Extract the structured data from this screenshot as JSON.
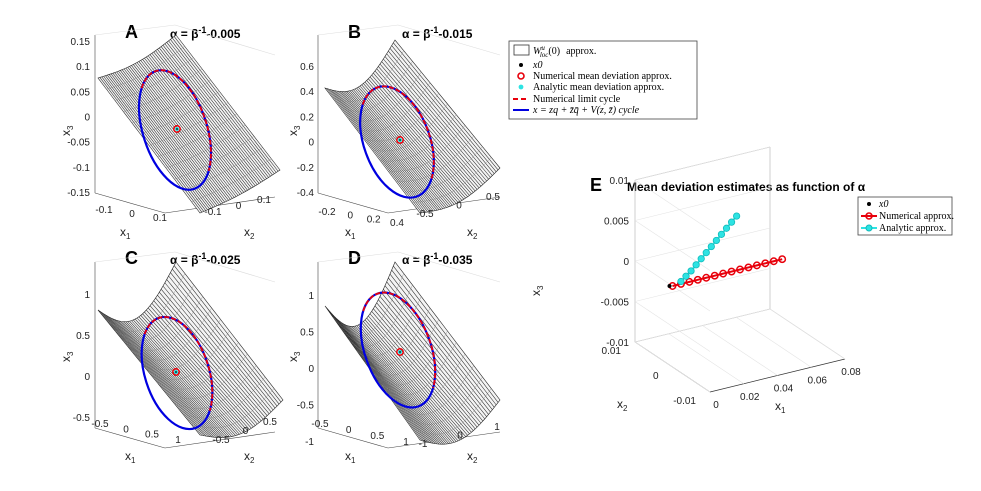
{
  "chart_data": [
    {
      "type": "scatter",
      "panel": "A",
      "title": "α = β-1-0.005",
      "title_parts": {
        "sym": "α",
        "eq": " = ",
        "beta": "β",
        "sup": "-1",
        "tail": "-0.005"
      },
      "xlabel": "x1",
      "ylabel": "x2",
      "zlabel": "x3",
      "x_ticks": [
        "-0.1",
        "0",
        "0.1"
      ],
      "y_ticks": [
        "-0.1",
        "0",
        "0.1"
      ],
      "z_ticks": [
        "0.15",
        "0.1",
        "0.05",
        "0",
        "-0.05",
        "-0.1",
        "-0.15"
      ],
      "zlim": [
        -0.15,
        0.15
      ],
      "series": [
        "surface",
        "numerical limit cycle",
        "analytic cycle",
        "numerical mean deviation",
        "analytic mean deviation"
      ]
    },
    {
      "type": "scatter",
      "panel": "B",
      "title": "α = β-1-0.015",
      "title_parts": {
        "sym": "α",
        "eq": " = ",
        "beta": "β",
        "sup": "-1",
        "tail": "-0.015"
      },
      "xlabel": "x1",
      "ylabel": "x2",
      "zlabel": "x3",
      "x_ticks": [
        "-0.2",
        "0",
        "0.2",
        "0.4"
      ],
      "y_ticks": [
        "-0.5",
        "0",
        "0.5"
      ],
      "z_ticks": [
        "0.6",
        "0.4",
        "0.2",
        "0",
        "-0.2",
        "-0.4"
      ],
      "zlim": [
        -0.4,
        0.6
      ],
      "series": [
        "surface",
        "numerical limit cycle",
        "analytic cycle",
        "numerical mean deviation",
        "analytic mean deviation"
      ]
    },
    {
      "type": "scatter",
      "panel": "C",
      "title": "α = β-1-0.025",
      "title_parts": {
        "sym": "α",
        "eq": " = ",
        "beta": "β",
        "sup": "-1",
        "tail": "-0.025"
      },
      "xlabel": "x1",
      "ylabel": "x2",
      "zlabel": "x3",
      "x_ticks": [
        "-0.5",
        "0",
        "0.5",
        "1"
      ],
      "y_ticks": [
        "-0.5",
        "0",
        "0.5"
      ],
      "z_ticks": [
        "1",
        "0.5",
        "0",
        "-0.5"
      ],
      "zlim": [
        -0.5,
        1
      ],
      "series": [
        "surface",
        "numerical limit cycle",
        "analytic cycle",
        "numerical mean deviation",
        "analytic mean deviation"
      ]
    },
    {
      "type": "scatter",
      "panel": "D",
      "title": "α = β-1-0.035",
      "title_parts": {
        "sym": "α",
        "eq": " = ",
        "beta": "β",
        "sup": "-1",
        "tail": "-0.035"
      },
      "xlabel": "x1",
      "ylabel": "x2",
      "zlabel": "x3",
      "x_ticks": [
        "-0.5",
        "0",
        "0.5",
        "1"
      ],
      "y_ticks": [
        "-1",
        "0",
        "1"
      ],
      "z_ticks": [
        "1",
        "0.5",
        "0",
        "-0.5",
        "-1"
      ],
      "zlim": [
        -1,
        1
      ],
      "series": [
        "surface",
        "numerical limit cycle",
        "analytic cycle",
        "numerical mean deviation",
        "analytic mean deviation"
      ]
    },
    {
      "type": "line",
      "panel": "E",
      "title": "Mean deviation estimates as function of α",
      "xlabel": "x1",
      "ylabel": "x2",
      "zlabel": "x3",
      "x_ticks": [
        "0",
        "0.02",
        "0.04",
        "0.06",
        "0.08"
      ],
      "y_ticks": [
        "0.01",
        "0",
        "-0.01"
      ],
      "z_ticks": [
        "0.01",
        "0.005",
        "0",
        "-0.005",
        "-0.01"
      ],
      "xlim": [
        0,
        0.08
      ],
      "ylim": [
        -0.01,
        0.01
      ],
      "zlim": [
        -0.01,
        0.01
      ],
      "origin": {
        "x1": 0,
        "x2": 0,
        "x3": 0
      },
      "series": [
        {
          "name": "Numerical approx.",
          "color": "#e8000b",
          "x1": [
            0.0,
            0.005,
            0.01,
            0.015,
            0.02,
            0.025,
            0.03,
            0.035,
            0.04,
            0.045,
            0.05,
            0.055,
            0.06,
            0.065
          ],
          "x3": [
            0,
            0,
            0,
            0,
            0,
            0,
            0,
            0,
            0,
            0,
            0,
            0,
            0,
            0
          ]
        },
        {
          "name": "Analytic approx.",
          "color": "#2de3e3",
          "x1": [
            0.005,
            0.008,
            0.011,
            0.014,
            0.017,
            0.02,
            0.023,
            0.026,
            0.029,
            0.032,
            0.035,
            0.038
          ],
          "x3": [
            0.0003,
            0.0008,
            0.0013,
            0.0019,
            0.0025,
            0.0031,
            0.0037,
            0.0043,
            0.0049,
            0.0055,
            0.0061,
            0.0067
          ]
        }
      ]
    }
  ],
  "legend_main": {
    "items": [
      {
        "label": "approx.",
        "math": "W",
        "sup": "u",
        "sub": "loc",
        "arg": "(0)"
      },
      {
        "label": "x0"
      },
      {
        "label": "Numerical mean deviation approx."
      },
      {
        "label": "Analytic mean deviation approx."
      },
      {
        "label": "Numerical limit cycle"
      },
      {
        "label": "x = zq + z̄q̄ + V(z, z̄)  cycle"
      }
    ]
  },
  "legend_e": {
    "items": [
      {
        "label": "x0"
      },
      {
        "label": "Numerical  approx."
      },
      {
        "label": "Analytic  approx."
      }
    ]
  },
  "colors": {
    "surface": "#333333",
    "surface_fill": "#ffffff",
    "numerical": "#e8000b",
    "analytic_cycle": "#0000e0",
    "analytic_mean": "#2de3e3",
    "axis": "#444444"
  }
}
